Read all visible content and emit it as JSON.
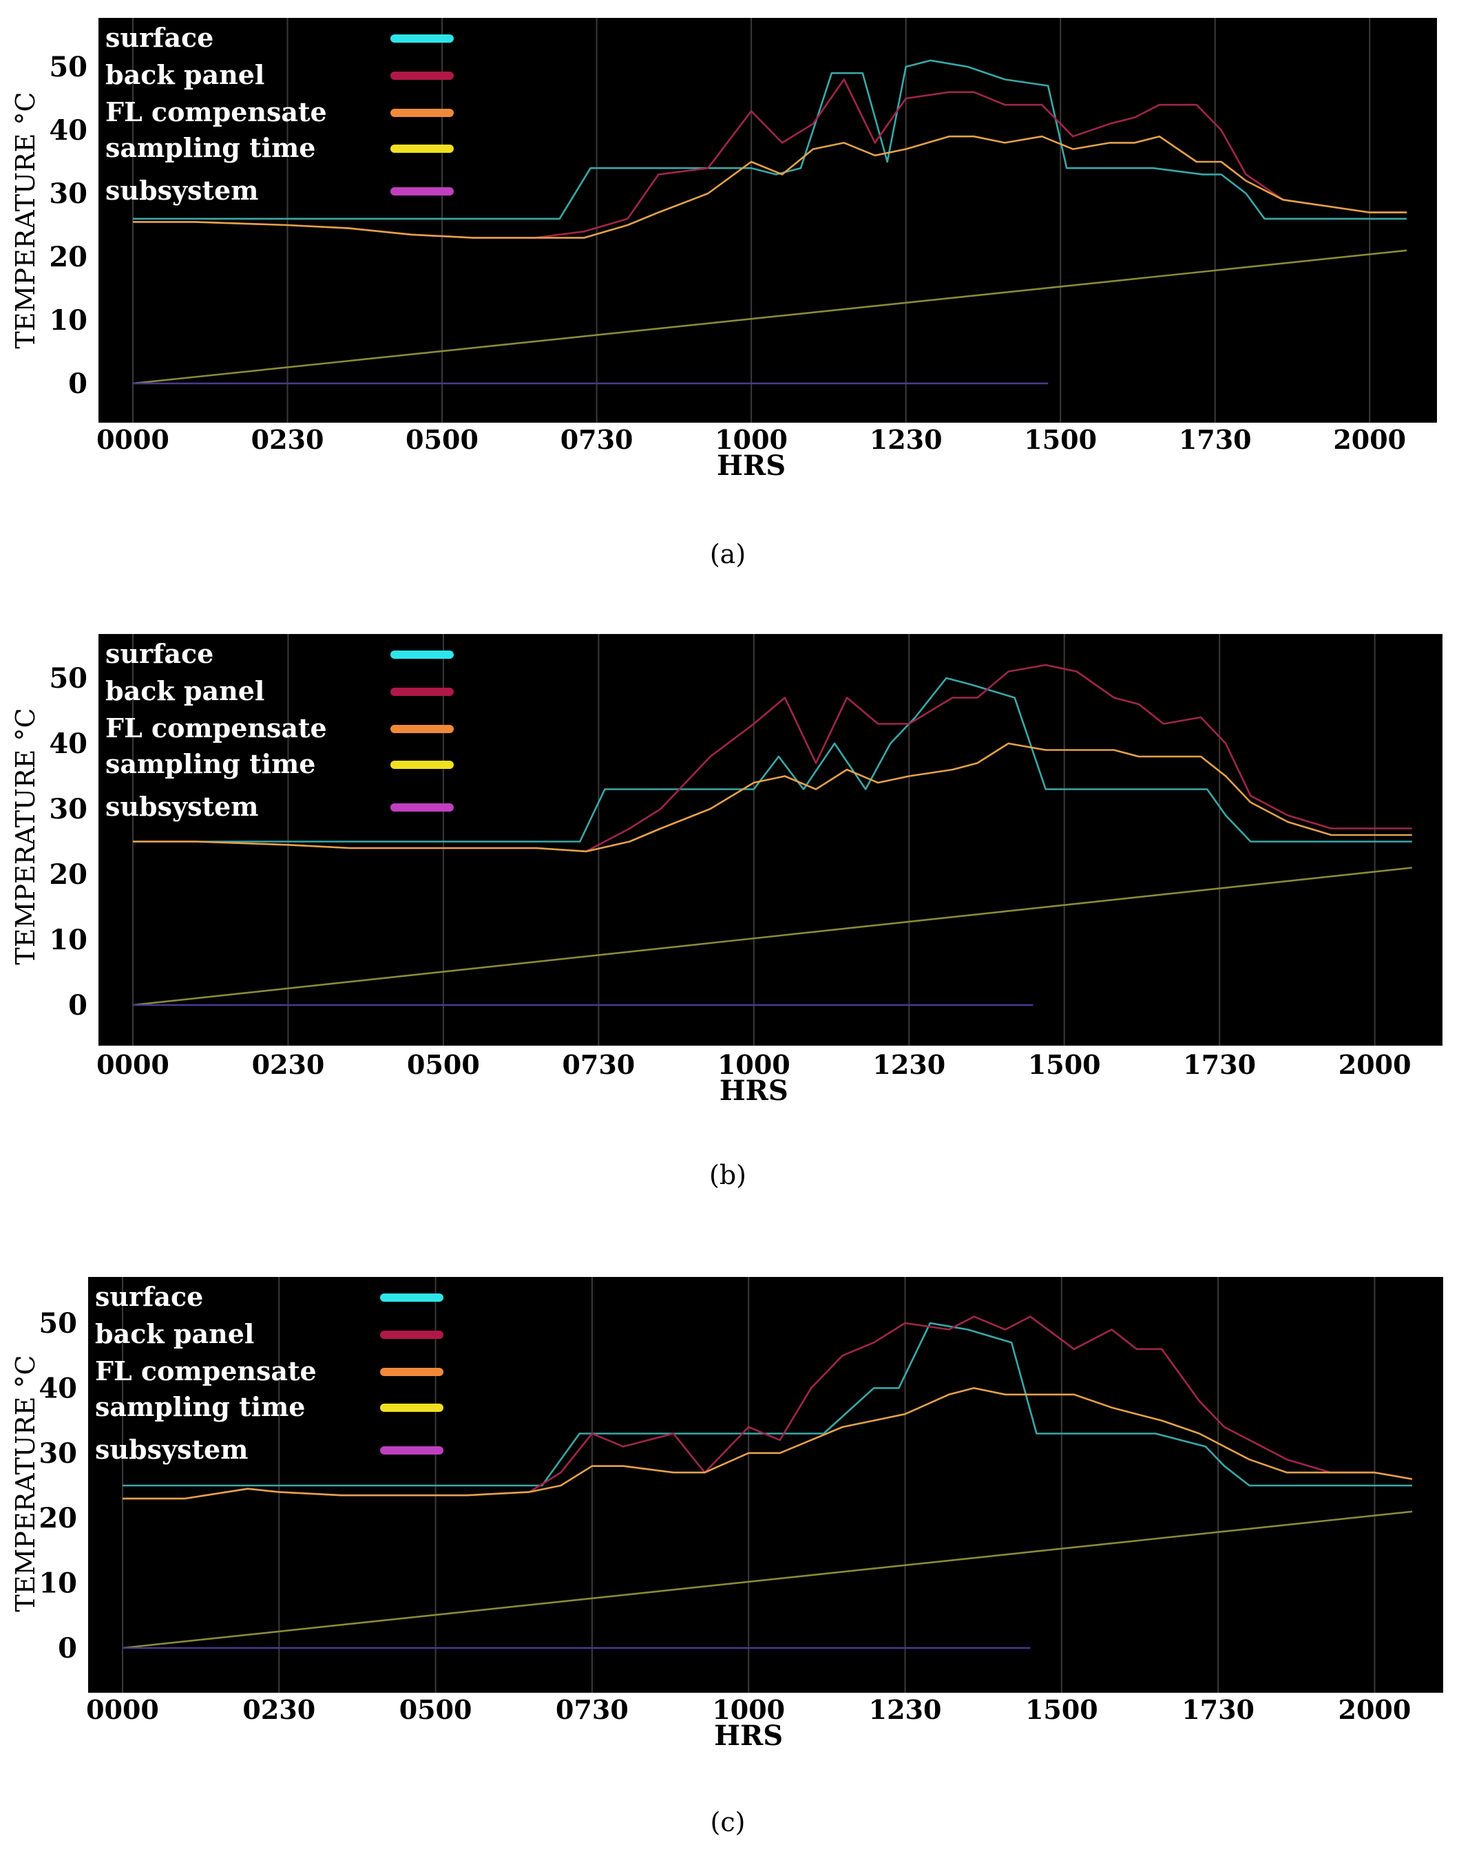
{
  "colors": {
    "surface": "#3aa8a8",
    "back_panel": "#a0264a",
    "fl_compensate": "#e4a24a",
    "sampling_time": "#8c8a3a",
    "subsystem": "#4a3a90",
    "legend_surface": "#2ee6ea",
    "legend_back_panel": "#b01848",
    "legend_fl_compensate": "#f08a3a",
    "legend_sampling_time": "#f0e020",
    "legend_subsystem": "#c040c0",
    "plot_background": "#000000"
  },
  "chart_data": [
    {
      "panel": "(a)",
      "type": "line",
      "ylabel": "TEMPERATURE °C",
      "xlabel": "HRS",
      "xticks": [
        "0000",
        "0230",
        "0500",
        "0730",
        "1000",
        "1230",
        "1500",
        "1730",
        "2000"
      ],
      "yticks": [
        "0",
        "10",
        "20",
        "30",
        "40",
        "50"
      ],
      "ylim": [
        -6,
        57
      ],
      "xlim": [
        0,
        20.6
      ],
      "grid": true,
      "legend_position": "top-left",
      "series": [
        {
          "name": "surface",
          "color_key": "surface",
          "x": [
            0,
            6.9,
            7.4,
            9.5,
            10.0,
            10.4,
            10.8,
            11.3,
            11.8,
            12.2,
            12.5,
            12.9,
            13.5,
            14.1,
            14.8,
            15.1,
            15.8,
            16.5,
            17.3,
            17.6,
            18.0,
            18.3,
            20.6
          ],
          "y": [
            26,
            26,
            34,
            34,
            34,
            33,
            34,
            49,
            49,
            35,
            50,
            51,
            50,
            48,
            47,
            34,
            34,
            34,
            33,
            33,
            30,
            26,
            26
          ]
        },
        {
          "name": "back panel",
          "color_key": "back_panel",
          "x": [
            0,
            1.0,
            2.5,
            3.5,
            4.5,
            5.5,
            6.5,
            7.3,
            8.0,
            8.5,
            9.3,
            10.0,
            10.5,
            11.0,
            11.5,
            12.0,
            12.5,
            13.2,
            13.6,
            14.1,
            14.7,
            15.2,
            15.8,
            16.2,
            16.6,
            17.2,
            17.6,
            18.0,
            18.6,
            19.3,
            20.0,
            20.6
          ],
          "y": [
            25.5,
            25.5,
            25,
            24.5,
            23.5,
            23,
            23,
            24,
            26,
            33,
            34,
            43,
            38,
            41,
            48,
            38,
            45,
            46,
            46,
            44,
            44,
            39,
            41,
            42,
            44,
            44,
            40,
            33,
            29,
            28,
            27,
            27
          ]
        },
        {
          "name": "FL compensate",
          "color_key": "fl_compensate",
          "x": [
            0,
            1.0,
            2.5,
            3.5,
            4.5,
            5.5,
            6.5,
            7.3,
            8.0,
            8.5,
            9.3,
            10.0,
            10.5,
            11.0,
            11.5,
            12.0,
            12.5,
            13.2,
            13.6,
            14.1,
            14.7,
            15.2,
            15.8,
            16.2,
            16.6,
            17.2,
            17.6,
            18.0,
            18.6,
            19.3,
            20.0,
            20.6
          ],
          "y": [
            25.5,
            25.5,
            25,
            24.5,
            23.5,
            23,
            23,
            23,
            25,
            27,
            30,
            35,
            33,
            37,
            38,
            36,
            37,
            39,
            39,
            38,
            39,
            37,
            38,
            38,
            39,
            35,
            35,
            32,
            29,
            28,
            27,
            27
          ]
        },
        {
          "name": "sampling time",
          "color_key": "sampling_time",
          "x": [
            0,
            20.6
          ],
          "y": [
            0,
            21
          ]
        },
        {
          "name": "subsystem",
          "color_key": "subsystem",
          "x": [
            0,
            14.8
          ],
          "y": [
            0,
            0
          ]
        }
      ]
    },
    {
      "panel": "(b)",
      "type": "line",
      "ylabel": "TEMPERATURE °C",
      "xlabel": "HRS",
      "xticks": [
        "0000",
        "0230",
        "0500",
        "0730",
        "1000",
        "1230",
        "1500",
        "1730",
        "2000"
      ],
      "yticks": [
        "0",
        "10",
        "20",
        "30",
        "40",
        "50"
      ],
      "ylim": [
        -6,
        57
      ],
      "xlim": [
        0,
        20.6
      ],
      "grid": true,
      "legend_position": "top-left",
      "series": [
        {
          "name": "surface",
          "color_key": "surface",
          "x": [
            0,
            7.2,
            7.6,
            9.5,
            10.0,
            10.4,
            10.8,
            11.3,
            11.8,
            12.2,
            12.6,
            13.1,
            13.5,
            14.2,
            14.7,
            15.1,
            15.8,
            16.5,
            17.3,
            17.6,
            18.0,
            18.4,
            20.6
          ],
          "y": [
            25,
            25,
            33,
            33,
            33,
            38,
            33,
            40,
            33,
            40,
            44,
            50,
            49,
            47,
            33,
            33,
            33,
            33,
            33,
            29,
            25,
            25,
            25
          ]
        },
        {
          "name": "back panel",
          "color_key": "back_panel",
          "x": [
            0,
            1.0,
            2.5,
            3.5,
            4.5,
            5.5,
            6.5,
            7.3,
            8.0,
            8.5,
            9.3,
            10.0,
            10.5,
            11.0,
            11.5,
            12.0,
            12.5,
            13.2,
            13.6,
            14.1,
            14.7,
            15.2,
            15.8,
            16.2,
            16.6,
            17.2,
            17.6,
            18.0,
            18.6,
            19.3,
            20.0,
            20.6
          ],
          "y": [
            25,
            25,
            24.5,
            24,
            24,
            24,
            24,
            23.5,
            27,
            30,
            38,
            43,
            47,
            37,
            47,
            43,
            43,
            47,
            47,
            51,
            52,
            51,
            47,
            46,
            43,
            44,
            40,
            32,
            29,
            27,
            27,
            27
          ]
        },
        {
          "name": "FL compensate",
          "color_key": "fl_compensate",
          "x": [
            0,
            1.0,
            2.5,
            3.5,
            4.5,
            5.5,
            6.5,
            7.3,
            8.0,
            8.5,
            9.3,
            10.0,
            10.5,
            11.0,
            11.5,
            12.0,
            12.5,
            13.2,
            13.6,
            14.1,
            14.7,
            15.2,
            15.8,
            16.2,
            16.6,
            17.2,
            17.6,
            18.0,
            18.6,
            19.3,
            20.0,
            20.6
          ],
          "y": [
            25,
            25,
            24.5,
            24,
            24,
            24,
            24,
            23.5,
            25,
            27,
            30,
            34,
            35,
            33,
            36,
            34,
            35,
            36,
            37,
            40,
            39,
            39,
            39,
            38,
            38,
            38,
            35,
            31,
            28,
            26,
            26,
            26
          ]
        },
        {
          "name": "sampling time",
          "color_key": "sampling_time",
          "x": [
            0,
            20.6
          ],
          "y": [
            0,
            21
          ]
        },
        {
          "name": "subsystem",
          "color_key": "subsystem",
          "x": [
            0,
            14.5
          ],
          "y": [
            0,
            0
          ]
        }
      ]
    },
    {
      "panel": "(c)",
      "type": "line",
      "ylabel": "TEMPERATURE °C",
      "xlabel": "HRS",
      "xticks": [
        "0000",
        "0230",
        "0500",
        "0730",
        "1000",
        "1230",
        "1500",
        "1730",
        "2000"
      ],
      "yticks": [
        "0",
        "10",
        "20",
        "30",
        "40",
        "50"
      ],
      "ylim": [
        -6,
        57
      ],
      "xlim": [
        0,
        20.6
      ],
      "grid": true,
      "legend_position": "top-left",
      "series": [
        {
          "name": "surface",
          "color_key": "surface",
          "x": [
            0,
            6.7,
            7.3,
            10.0,
            10.4,
            11.2,
            12.0,
            12.4,
            12.9,
            13.5,
            14.2,
            14.6,
            15.0,
            15.8,
            16.5,
            17.3,
            17.6,
            18.0,
            20.6
          ],
          "y": [
            25,
            25,
            33,
            33,
            33,
            33,
            40,
            40,
            50,
            49,
            47,
            33,
            33,
            33,
            33,
            31,
            28,
            25,
            25
          ]
        },
        {
          "name": "back panel",
          "color_key": "back_panel",
          "x": [
            0,
            1.0,
            2.0,
            2.5,
            3.5,
            4.5,
            5.5,
            6.5,
            7.0,
            7.5,
            8.0,
            8.8,
            9.3,
            10.0,
            10.5,
            11.0,
            11.5,
            12.0,
            12.5,
            13.2,
            13.6,
            14.1,
            14.5,
            15.2,
            15.8,
            16.2,
            16.6,
            17.2,
            17.6,
            18.0,
            18.6,
            19.3,
            20.0,
            20.6
          ],
          "y": [
            23,
            23,
            24.5,
            24,
            23.5,
            23.5,
            23.5,
            24,
            27,
            33,
            31,
            33,
            27,
            34,
            32,
            40,
            45,
            47,
            50,
            49,
            51,
            49,
            51,
            46,
            49,
            46,
            46,
            38,
            34,
            32,
            29,
            27,
            27,
            26
          ]
        },
        {
          "name": "FL compensate",
          "color_key": "fl_compensate",
          "x": [
            0,
            1.0,
            2.0,
            2.5,
            3.5,
            4.5,
            5.5,
            6.5,
            7.0,
            7.5,
            8.0,
            8.8,
            9.3,
            10.0,
            10.5,
            11.0,
            11.5,
            12.0,
            12.5,
            13.2,
            13.6,
            14.1,
            14.5,
            15.2,
            15.8,
            16.2,
            16.6,
            17.2,
            17.6,
            18.0,
            18.6,
            19.3,
            20.0,
            20.6
          ],
          "y": [
            23,
            23,
            24.5,
            24,
            23.5,
            23.5,
            23.5,
            24,
            25,
            28,
            28,
            27,
            27,
            30,
            30,
            32,
            34,
            35,
            36,
            39,
            40,
            39,
            39,
            39,
            37,
            36,
            35,
            33,
            31,
            29,
            27,
            27,
            27,
            26
          ]
        },
        {
          "name": "sampling time",
          "color_key": "sampling_time",
          "x": [
            0,
            20.6
          ],
          "y": [
            0,
            21
          ]
        },
        {
          "name": "subsystem",
          "color_key": "subsystem",
          "x": [
            0,
            14.5
          ],
          "y": [
            0,
            0
          ]
        }
      ]
    }
  ],
  "legend": [
    {
      "label": "surface",
      "color_key": "legend_surface"
    },
    {
      "label": "back panel",
      "color_key": "legend_back_panel"
    },
    {
      "label": "FL compensate",
      "color_key": "legend_fl_compensate"
    },
    {
      "label": "sampling time",
      "color_key": "legend_sampling_time"
    },
    {
      "label": "subsystem",
      "color_key": "legend_subsystem"
    }
  ],
  "captions": [
    "(a)",
    "(b)",
    "(c)"
  ]
}
